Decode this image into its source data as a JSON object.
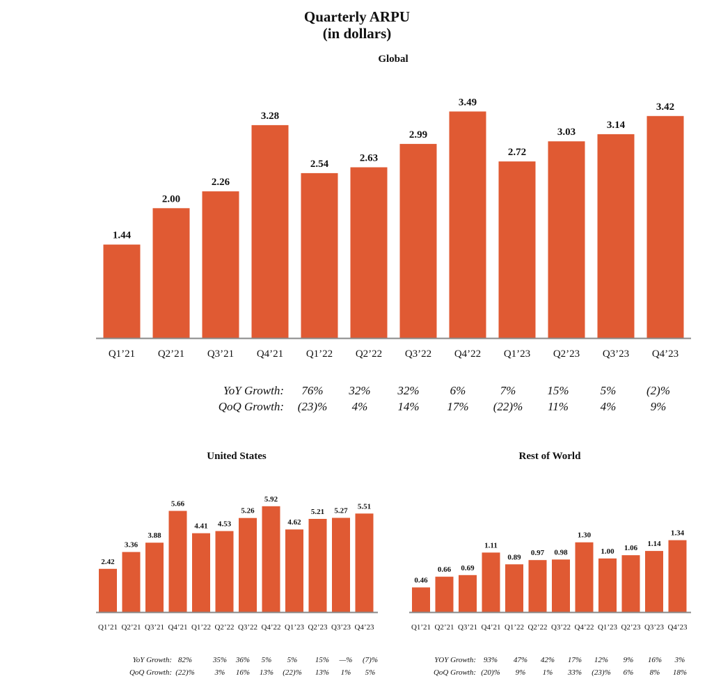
{
  "page": {
    "title_line1": "Quarterly ARPU",
    "title_line2": "(in dollars)"
  },
  "colors": {
    "bar": "#E05A33",
    "axis": "#888888"
  },
  "chart_data": [
    {
      "type": "bar",
      "title": "Global",
      "categories": [
        "Q1’21",
        "Q2’21",
        "Q3’21",
        "Q4’21",
        "Q1’22",
        "Q2’22",
        "Q3’22",
        "Q4’22",
        "Q1’23",
        "Q2’23",
        "Q3’23",
        "Q4’23"
      ],
      "values": [
        1.44,
        2.0,
        2.26,
        3.28,
        2.54,
        2.63,
        2.99,
        3.49,
        2.72,
        3.03,
        3.14,
        3.42
      ],
      "value_labels": [
        "1.44",
        "2.00",
        "2.26",
        "3.28",
        "2.54",
        "2.63",
        "2.99",
        "3.49",
        "2.72",
        "3.03",
        "3.14",
        "3.42"
      ],
      "ylim": [
        0,
        3.6
      ],
      "growth_rows": [
        {
          "label": "YoY Growth:",
          "values": [
            "76%",
            "32%",
            "32%",
            "6%",
            "7%",
            "15%",
            "5%",
            "(2)%"
          ]
        },
        {
          "label": "QoQ Growth:",
          "values": [
            "(23)%",
            "4%",
            "14%",
            "17%",
            "(22)%",
            "11%",
            "4%",
            "9%"
          ]
        }
      ]
    },
    {
      "type": "bar",
      "title": "United States",
      "categories": [
        "Q1’21",
        "Q2’21",
        "Q3’21",
        "Q4’21",
        "Q1’22",
        "Q2’22",
        "Q3’22",
        "Q4’22",
        "Q1’23",
        "Q2’23",
        "Q3’23",
        "Q4’23"
      ],
      "values": [
        2.42,
        3.36,
        3.88,
        5.66,
        4.41,
        4.53,
        5.26,
        5.92,
        4.62,
        5.21,
        5.27,
        5.51
      ],
      "value_labels": [
        "2.42",
        "3.36",
        "3.88",
        "5.66",
        "4.41",
        "4.53",
        "5.26",
        "5.92",
        "4.62",
        "5.21",
        "5.27",
        "5.51"
      ],
      "ylim": [
        0,
        6.3
      ],
      "growth_rows": [
        {
          "label": "YoY Growth:",
          "values": [
            "82%",
            "35%",
            "36%",
            "5%",
            "5%",
            "15%",
            "—%",
            "(7)%"
          ]
        },
        {
          "label": "QoQ Growth:",
          "values": [
            "(22)%",
            "3%",
            "16%",
            "13%",
            "(22)%",
            "13%",
            "1%",
            "5%"
          ]
        }
      ]
    },
    {
      "type": "bar",
      "title": "Rest of World",
      "categories": [
        "Q1’21",
        "Q2’21",
        "Q3’21",
        "Q4’21",
        "Q1’22",
        "Q2’22",
        "Q3’22",
        "Q4’22",
        "Q1’23",
        "Q2’23",
        "Q3’23",
        "Q4’23"
      ],
      "values": [
        0.46,
        0.66,
        0.69,
        1.11,
        0.89,
        0.97,
        0.98,
        1.3,
        1.0,
        1.06,
        1.14,
        1.34
      ],
      "value_labels": [
        "0.46",
        "0.66",
        "0.69",
        "1.11",
        "0.89",
        "0.97",
        "0.98",
        "1.30",
        "1.00",
        "1.06",
        "1.14",
        "1.34"
      ],
      "ylim": [
        0,
        2.1
      ],
      "growth_rows": [
        {
          "label": "YOY Growth:",
          "values": [
            "93%",
            "47%",
            "42%",
            "17%",
            "12%",
            "9%",
            "16%",
            "3%"
          ]
        },
        {
          "label": "QoQ Growth:",
          "values": [
            "(20)%",
            "9%",
            "1%",
            "33%",
            "(23)%",
            "6%",
            "8%",
            "18%"
          ]
        }
      ]
    }
  ]
}
